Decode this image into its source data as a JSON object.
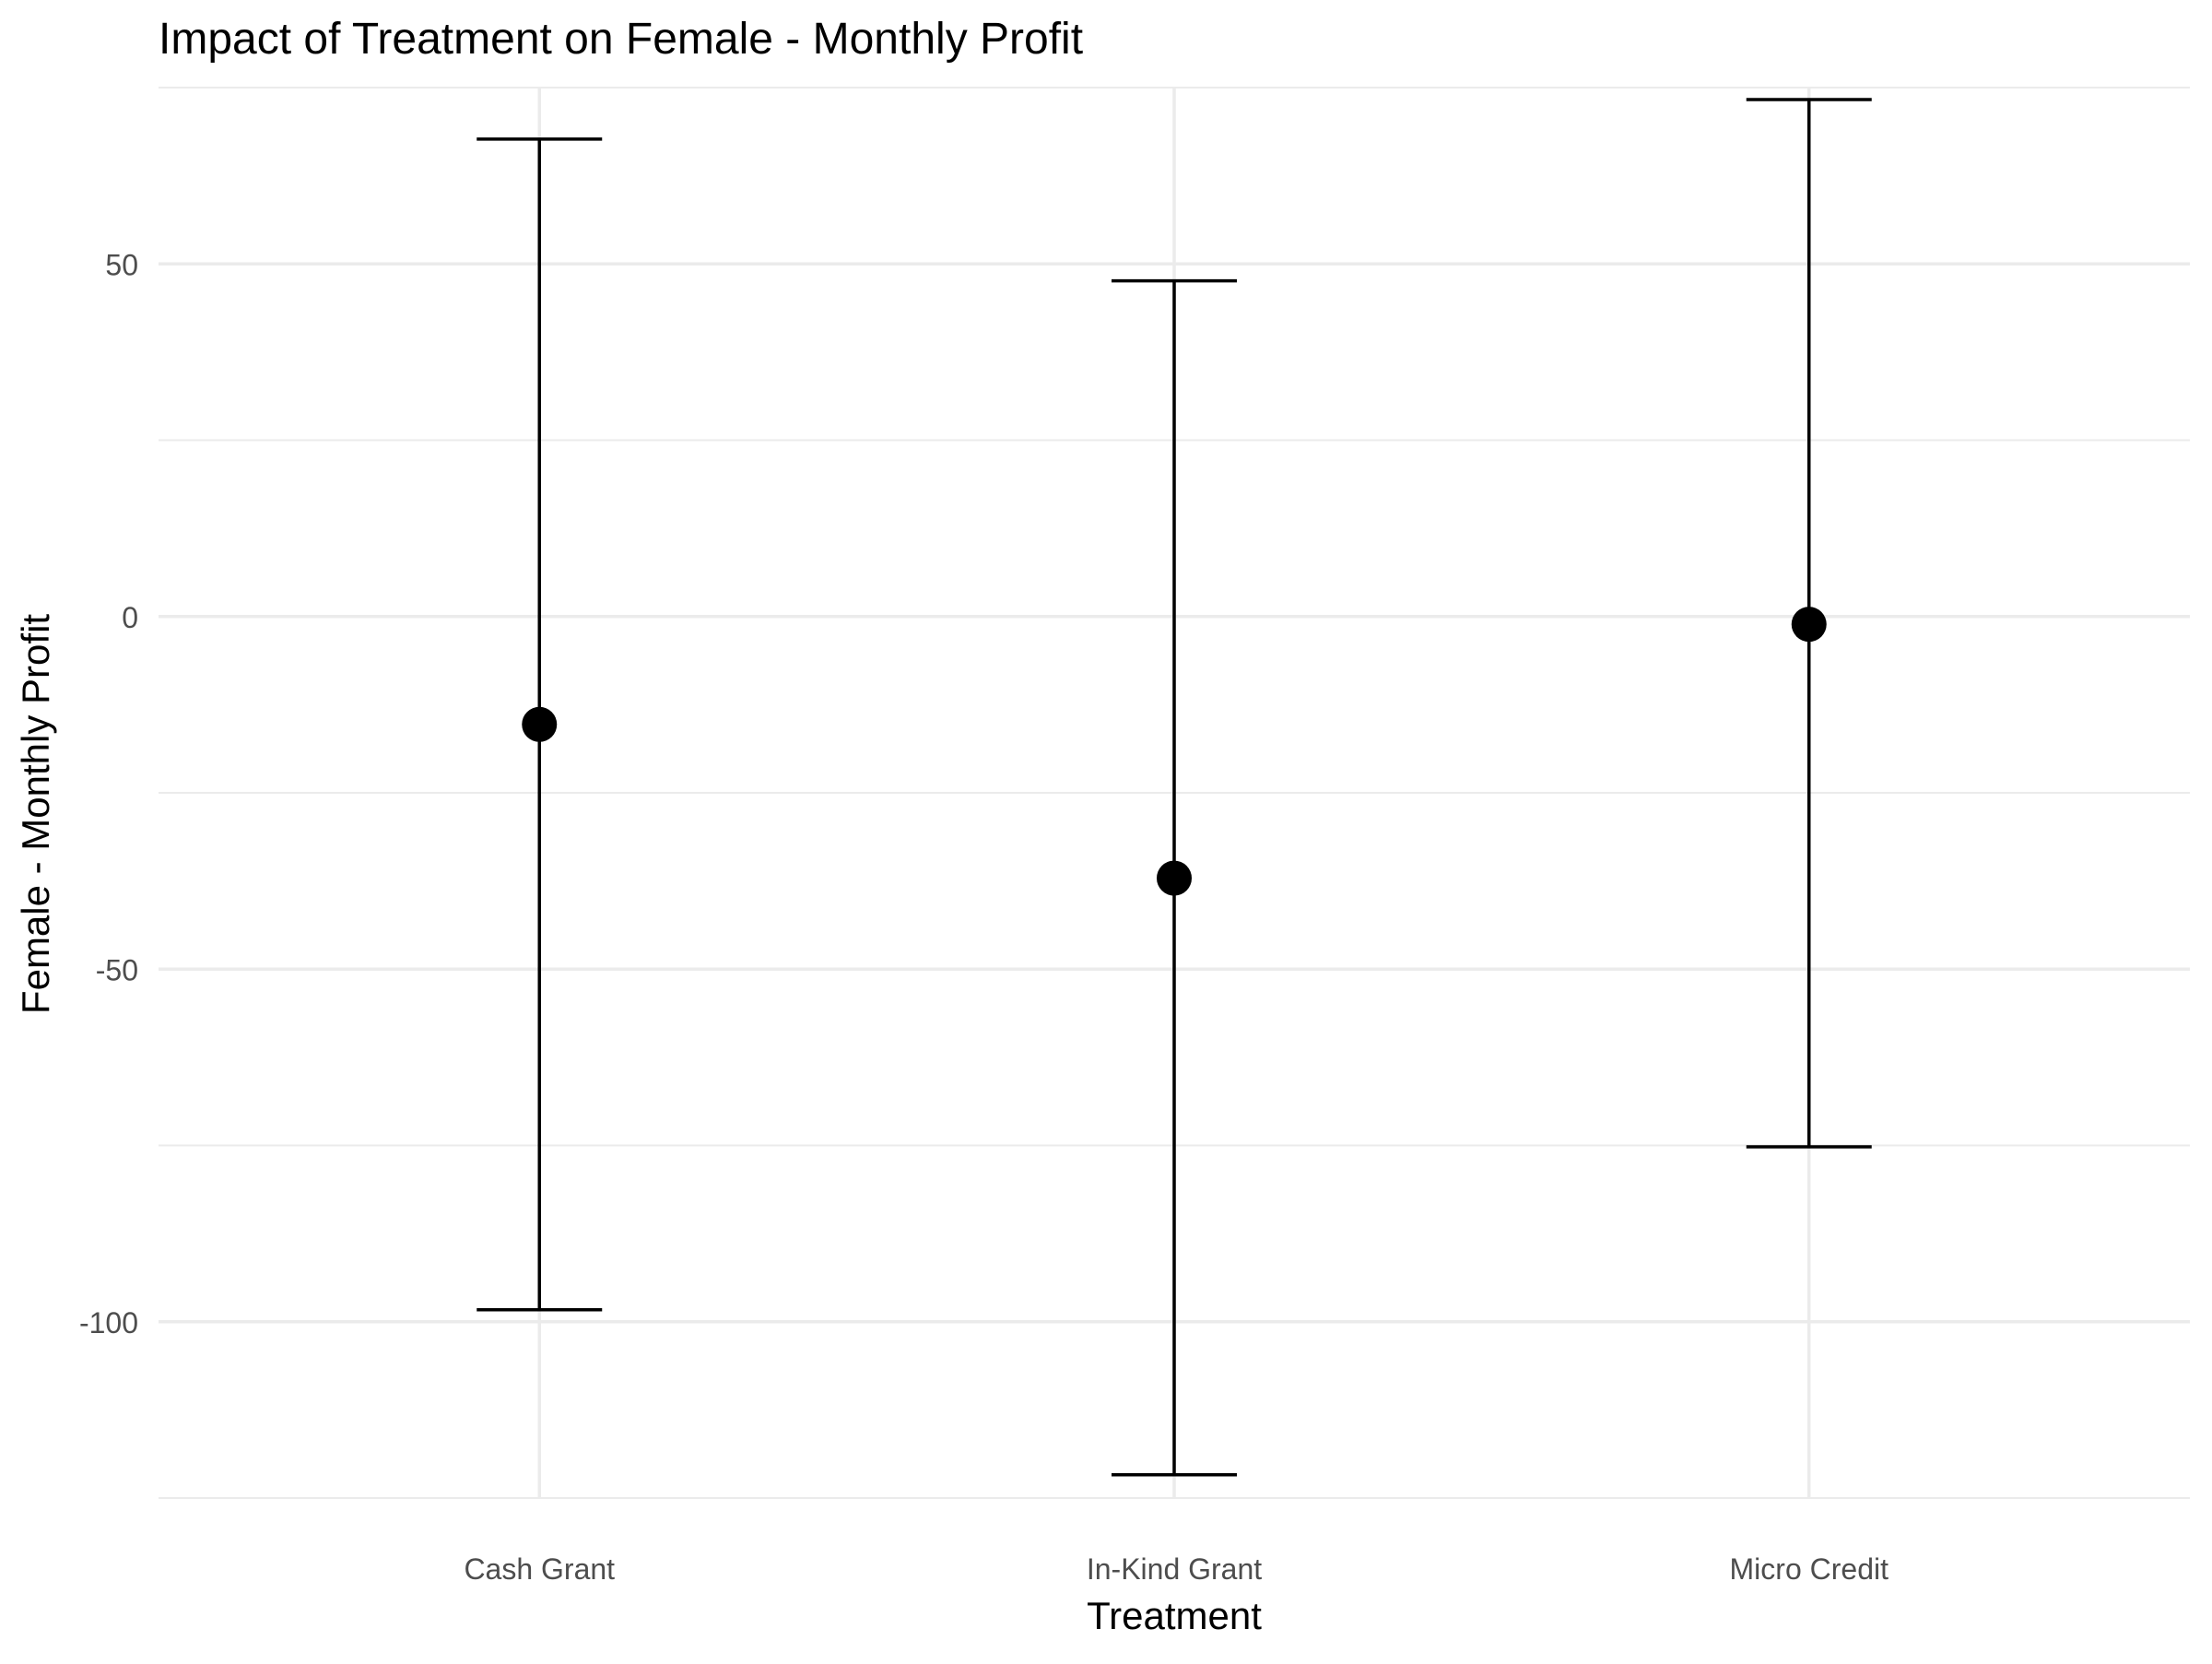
{
  "chart_data": {
    "type": "scatter",
    "title": "Impact of Treatment on Female - Monthly Profit",
    "xlabel": "Treatment",
    "ylabel": "Female - Monthly Profit",
    "categories": [
      "Cash Grant",
      "In-Kind Grant",
      "Micro Credit"
    ],
    "series": [
      {
        "estimate": [
          -15.3,
          -37.1,
          -1.1
        ],
        "ci_lower": [
          -98.3,
          -121.7,
          -75.2
        ],
        "ci_upper": [
          67.7,
          47.6,
          73.3
        ]
      }
    ],
    "ylim": [
      -125,
      75
    ],
    "y_ticks": [
      -100,
      -50,
      0,
      50
    ],
    "y_tick_labels": [
      "-100",
      "-50",
      "0",
      "50"
    ],
    "y_minor_ticks": [
      -125,
      -75,
      -25,
      25,
      75
    ],
    "grid": true,
    "legend": "none",
    "colors": {
      "points": "#000000",
      "error_bars": "#000000",
      "grid": "#ebebeb",
      "title": "#000000",
      "axis_text": "#4d4d4d"
    }
  }
}
